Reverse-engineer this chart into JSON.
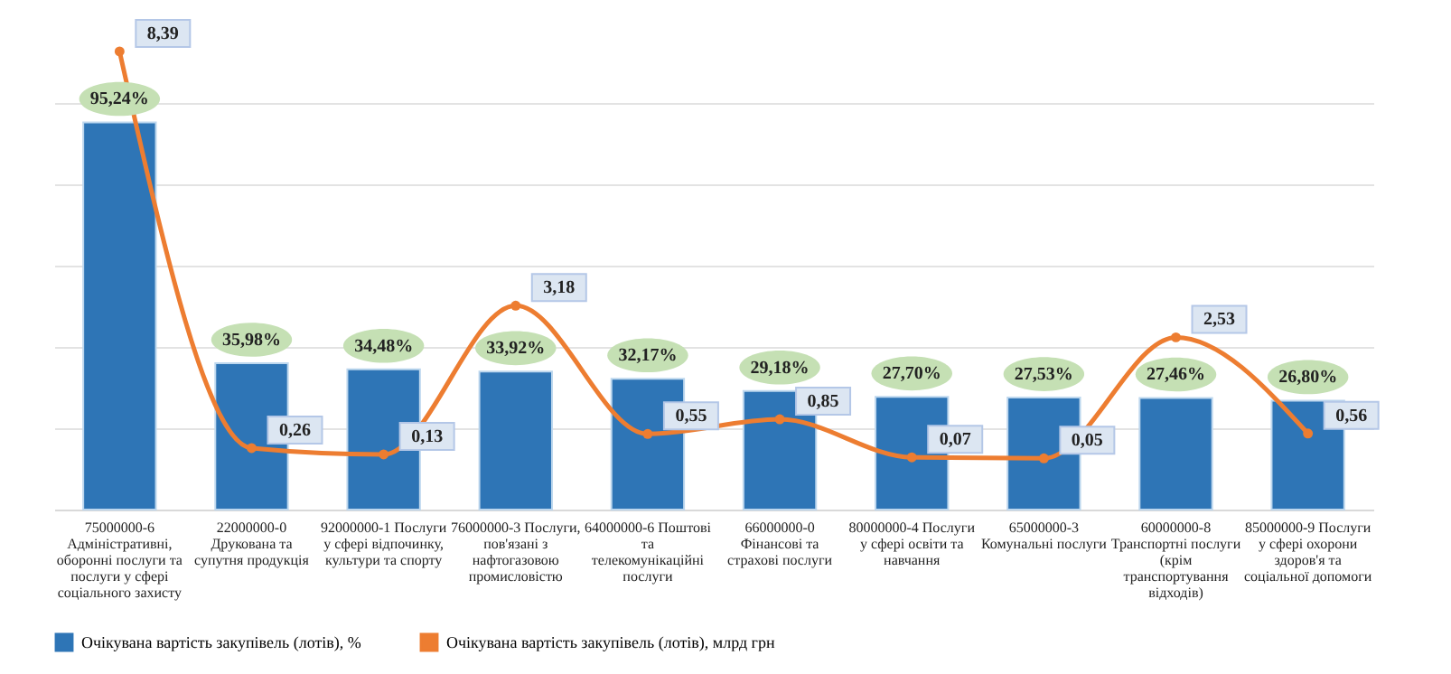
{
  "chart_data": {
    "type": "bar",
    "categories": [
      "75000000-6 Адміністративні, оборонні послуги та послуги у сфері соціального захисту",
      "22000000-0 Друкована та супутня продукція",
      "92000000-1 Послуги у сфері відпочинку, культури та спорту",
      "76000000-3 Послуги, пов'язані з нафтогазовою промисловістю",
      "64000000-6 Поштові та телекомунікаційні послуги",
      "66000000-0 Фінансові та страхові послуги",
      "80000000-4 Послуги у сфері освіти та навчання",
      "65000000-3 Комунальні послуги",
      "60000000-8 Транспортні послуги (крім транспортування відходів)",
      "85000000-9 Послуги у сфері охорони здоров'я та соціальної допомоги"
    ],
    "series": [
      {
        "name": "Очікувана вартість закупівель (лотів), %",
        "color": "#2e75b6",
        "values": [
          95.24,
          35.98,
          34.48,
          33.92,
          32.17,
          29.18,
          27.7,
          27.53,
          27.46,
          26.8
        ],
        "value_labels": [
          "95,24%",
          "35,98%",
          "34,48%",
          "33,92%",
          "32,17%",
          "29,18%",
          "27,70%",
          "27,53%",
          "27,46%",
          "26,80%"
        ]
      },
      {
        "name": "Очікувана вартість закупівель (лотів), млрд грн",
        "type": "line",
        "axis": "y2",
        "color": "#ed7d31",
        "values": [
          8.39,
          0.26,
          0.13,
          3.18,
          0.55,
          0.85,
          0.07,
          0.05,
          2.53,
          0.56
        ],
        "value_labels": [
          "8,39",
          "0,26",
          "0,13",
          "3,18",
          "0,55",
          "0,85",
          "0,07",
          "0,05",
          "2,53",
          "0,56"
        ]
      }
    ],
    "ylim": [
      0,
      120
    ],
    "yticks": [
      {
        "value": 0,
        "label": null
      },
      {
        "value": 20,
        "label": null
      },
      {
        "value": 40,
        "label": null
      },
      {
        "value": 60,
        "label": null
      },
      {
        "value": 80,
        "label": null
      },
      {
        "value": 100,
        "label": null
      }
    ],
    "y2lim": [
      -1,
      9
    ],
    "tick_labels": "x",
    "grid": "y",
    "legend": "bottom",
    "marker": "circle",
    "line_style": "solid"
  }
}
